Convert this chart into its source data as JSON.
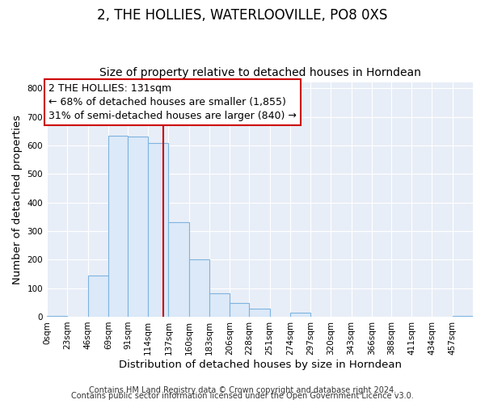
{
  "title": "2, THE HOLLIES, WATERLOOVILLE, PO8 0XS",
  "subtitle": "Size of property relative to detached houses in Horndean",
  "xlabel": "Distribution of detached houses by size in Horndean",
  "ylabel": "Number of detached properties",
  "bin_edges": [
    0,
    23,
    46,
    69,
    91,
    114,
    137,
    160,
    183,
    206,
    228,
    251,
    274,
    297,
    320,
    343,
    366,
    388,
    411,
    434,
    457,
    480
  ],
  "bar_heights": [
    3,
    0,
    143,
    635,
    632,
    610,
    332,
    200,
    83,
    47,
    28,
    0,
    13,
    0,
    0,
    0,
    0,
    0,
    0,
    0,
    3
  ],
  "bar_color": "#dce9f8",
  "bar_edge_color": "#7db3e0",
  "property_line_x": 131,
  "property_line_color": "#cc0000",
  "annotation_line1": "2 THE HOLLIES: 131sqm",
  "annotation_line2": "← 68% of detached houses are smaller (1,855)",
  "annotation_line3": "31% of semi-detached houses are larger (840) →",
  "annotation_box_color": "#ffffff",
  "annotation_box_edge": "#cc0000",
  "ylim": [
    0,
    820
  ],
  "xlim": [
    0,
    480
  ],
  "tick_labels": [
    "0sqm",
    "23sqm",
    "46sqm",
    "69sqm",
    "91sqm",
    "114sqm",
    "137sqm",
    "160sqm",
    "183sqm",
    "206sqm",
    "228sqm",
    "251sqm",
    "274sqm",
    "297sqm",
    "320sqm",
    "343sqm",
    "366sqm",
    "388sqm",
    "411sqm",
    "434sqm",
    "457sqm"
  ],
  "ytick_values": [
    0,
    100,
    200,
    300,
    400,
    500,
    600,
    700,
    800
  ],
  "footnote1": "Contains HM Land Registry data © Crown copyright and database right 2024.",
  "footnote2": "Contains public sector information licensed under the Open Government Licence v3.0.",
  "plot_bg_color": "#e8eef7",
  "fig_bg_color": "#ffffff",
  "grid_color": "#ffffff",
  "title_fontsize": 12,
  "subtitle_fontsize": 10,
  "axis_label_fontsize": 9.5,
  "tick_fontsize": 7.5,
  "annotation_fontsize": 9,
  "footnote_fontsize": 7
}
